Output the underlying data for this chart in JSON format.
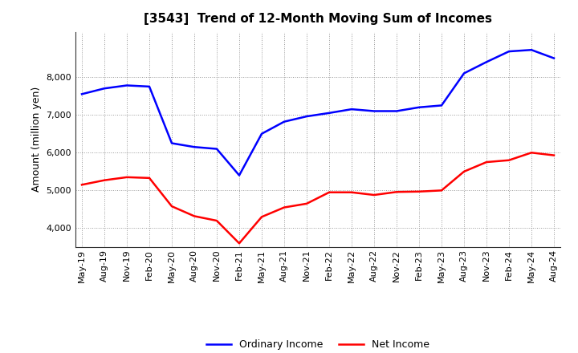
{
  "title": "[3543]  Trend of 12-Month Moving Sum of Incomes",
  "ylabel": "Amount (million yen)",
  "labels": [
    "May-19",
    "Aug-19",
    "Nov-19",
    "Feb-20",
    "May-20",
    "Aug-20",
    "Nov-20",
    "Feb-21",
    "May-21",
    "Aug-21",
    "Nov-21",
    "Feb-22",
    "May-22",
    "Aug-22",
    "Nov-22",
    "Feb-23",
    "May-23",
    "Aug-23",
    "Nov-23",
    "Feb-24",
    "May-24",
    "Aug-24"
  ],
  "ordinary_income": [
    7550,
    7700,
    7780,
    7750,
    6250,
    6150,
    6100,
    5400,
    6500,
    6820,
    6960,
    7050,
    7150,
    7100,
    7100,
    7200,
    7250,
    8100,
    8400,
    8680,
    8720,
    8500
  ],
  "net_income": [
    5150,
    5270,
    5350,
    5330,
    4580,
    4320,
    4200,
    3600,
    4300,
    4550,
    4650,
    4950,
    4950,
    4880,
    4960,
    4970,
    5000,
    5500,
    5750,
    5800,
    6000,
    5930
  ],
  "ordinary_color": "#0000FF",
  "net_color": "#FF0000",
  "ylim_min": 3500,
  "ylim_max": 9200,
  "yticks": [
    4000,
    5000,
    6000,
    7000,
    8000
  ],
  "background_color": "#FFFFFF",
  "plot_bg_color": "#FFFFFF",
  "grid_color": "#999999",
  "line_width": 1.8,
  "title_fontsize": 11,
  "tick_fontsize": 8,
  "ylabel_fontsize": 9,
  "legend_fontsize": 9
}
